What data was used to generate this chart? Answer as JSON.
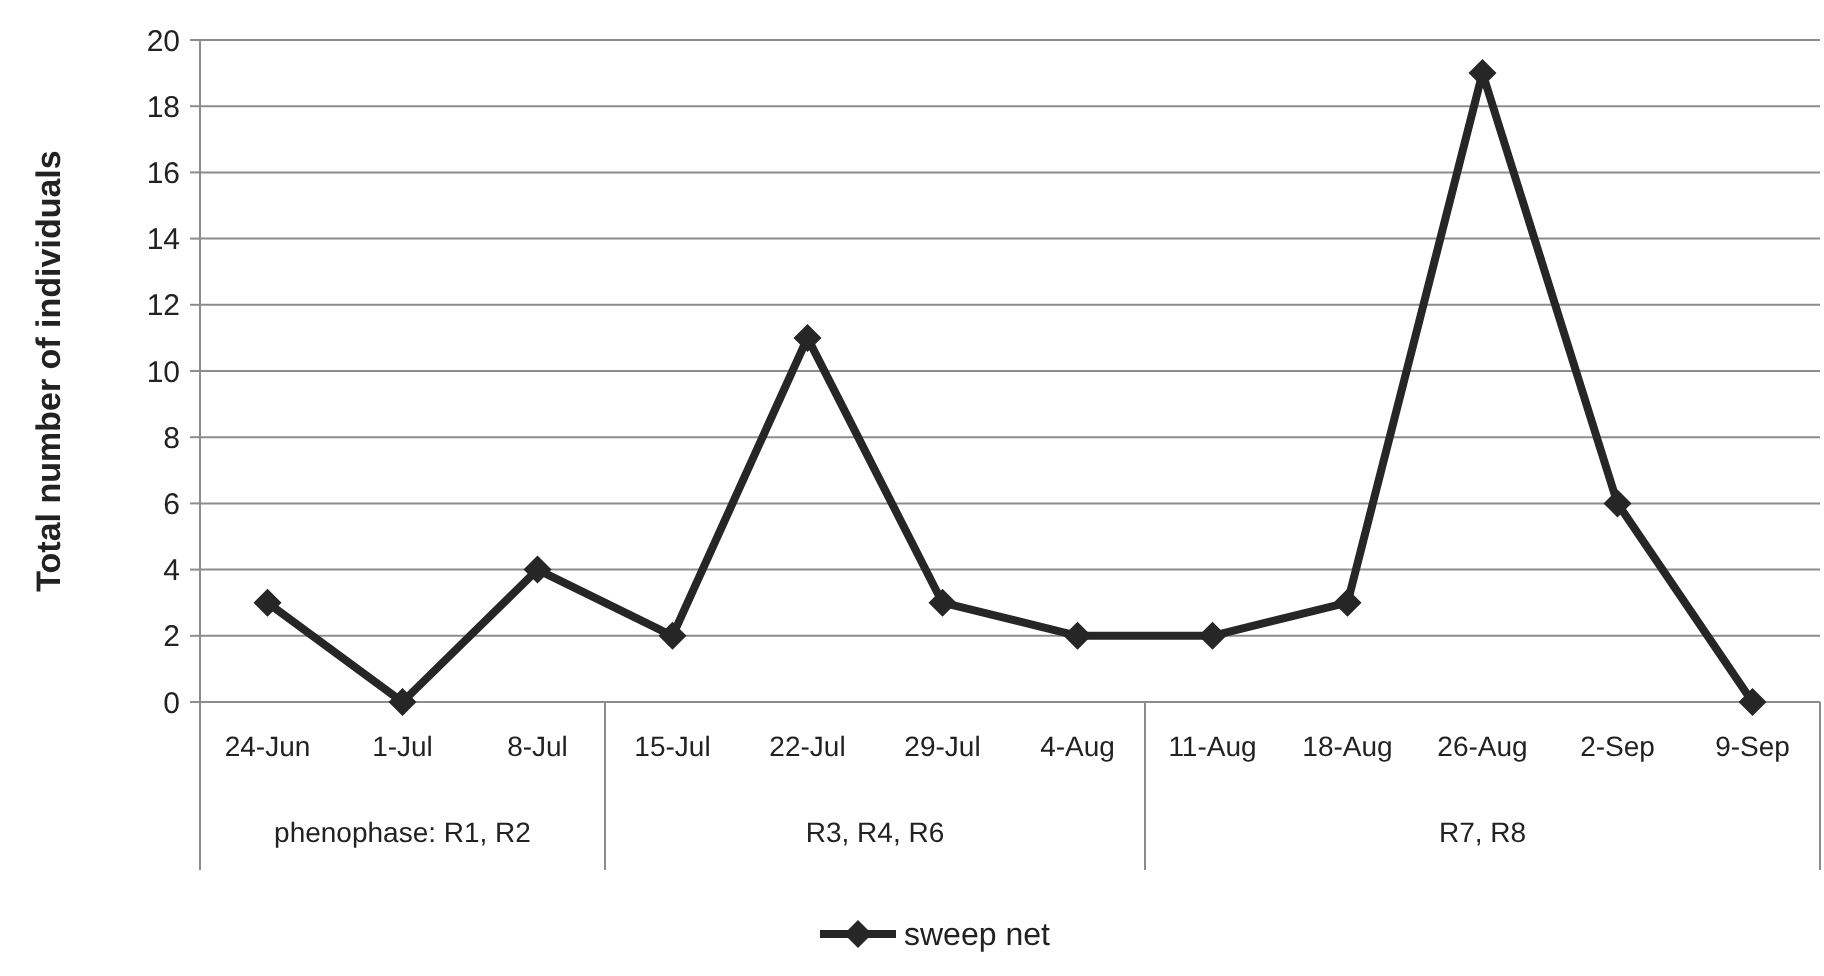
{
  "chart_data": {
    "type": "line",
    "ylabel": "Total number of individuals",
    "categories": [
      "24-Jun",
      "1-Jul",
      "8-Jul",
      "15-Jul",
      "22-Jul",
      "29-Jul",
      "4-Aug",
      "11-Aug",
      "18-Aug",
      "26-Aug",
      "2-Sep",
      "9-Sep"
    ],
    "series": [
      {
        "name": "sweep net",
        "color": "#262626",
        "values": [
          3,
          0,
          4,
          2,
          11,
          3,
          2,
          2,
          3,
          19,
          6,
          0
        ]
      }
    ],
    "ylim": [
      0,
      20
    ],
    "yticks": [
      0,
      2,
      4,
      6,
      8,
      10,
      12,
      14,
      16,
      18,
      20
    ],
    "grid": "y",
    "legend": "bottom",
    "marker": "diamond",
    "line_style": "solid",
    "annotations": [
      "phenophase: R1, R2",
      "R3, R4, R6",
      "R7, R8"
    ]
  }
}
